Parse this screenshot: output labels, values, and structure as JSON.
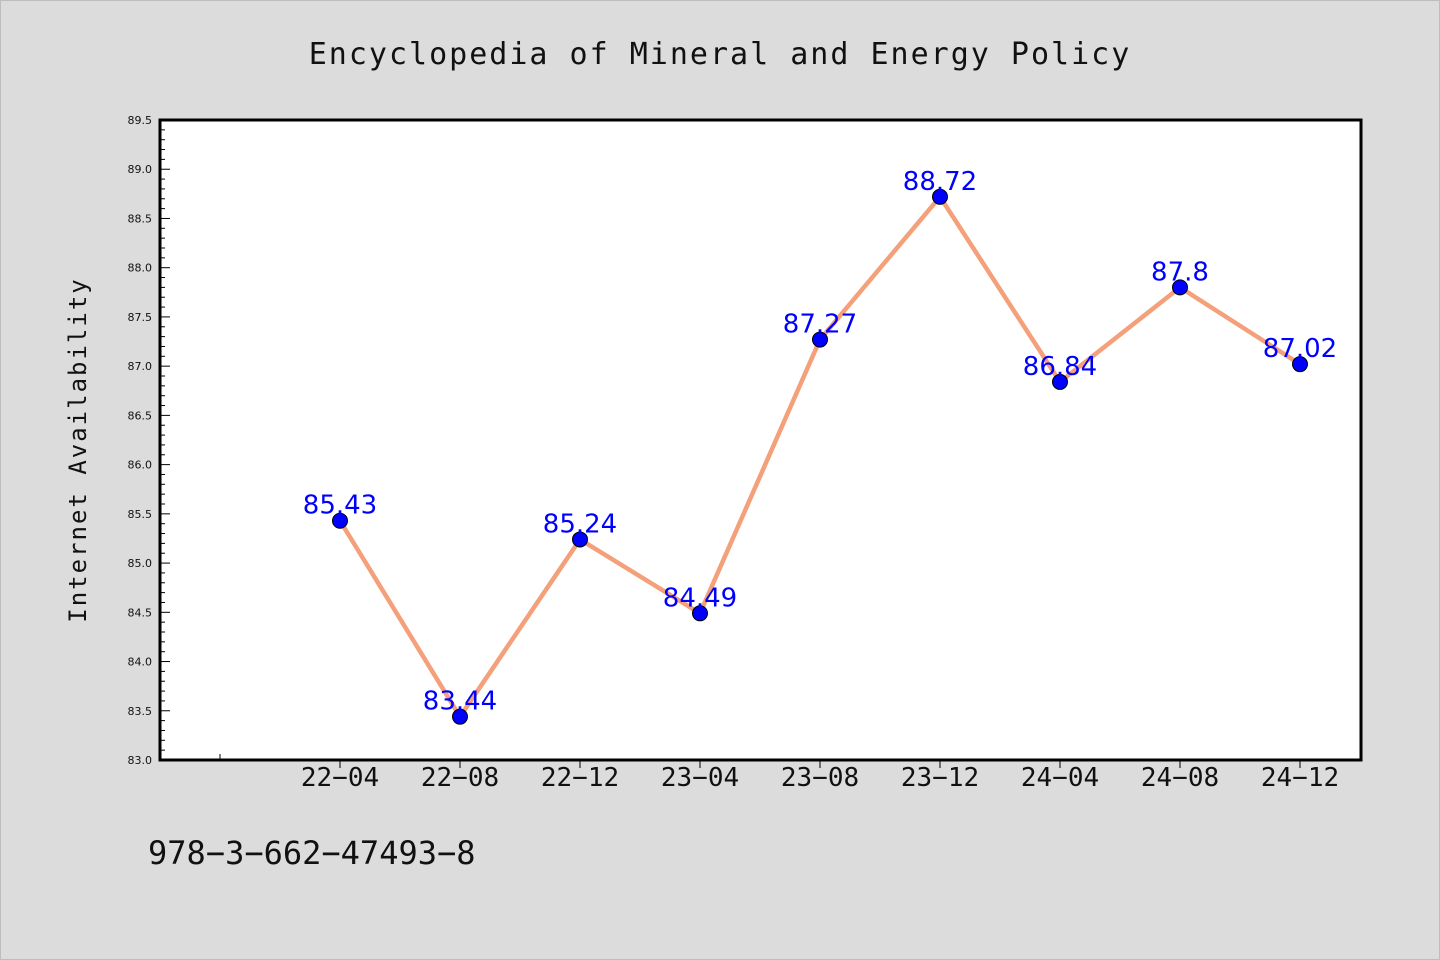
{
  "chart_data": {
    "type": "line",
    "title": "Encyclopedia of Mineral and Energy Policy",
    "xlabel": "",
    "ylabel": "Internet Availability",
    "x": [
      "22-04",
      "22-08",
      "22-12",
      "23-04",
      "23-08",
      "23-12",
      "24-04",
      "24-08",
      "24-12"
    ],
    "x_tick_labels": [
      "22−04",
      "22−08",
      "22−12",
      "23−04",
      "23−08",
      "23−12",
      "24−04",
      "24−08",
      "24−12"
    ],
    "series": [
      {
        "values": [
          85.43,
          83.44,
          85.24,
          84.49,
          87.27,
          88.72,
          86.84,
          87.8,
          87.02
        ],
        "labels": [
          "85.43",
          "83.44",
          "85.24",
          "84.49",
          "87.27",
          "88.72",
          "86.84",
          "87.8",
          "87.02"
        ],
        "line_color": "#f4a07a",
        "marker_color": "#0000ff"
      }
    ],
    "ylim": [
      83.0,
      89.5
    ],
    "y_ticks": [
      "83.0",
      "83.5",
      "84.0",
      "84.5",
      "85.0",
      "85.5",
      "86.0",
      "86.5",
      "87.0",
      "87.5",
      "88.0",
      "88.5",
      "89.0",
      "89.5"
    ],
    "grid": false,
    "legend": "none"
  },
  "footer": {
    "text": "978−3−662−47493−8"
  },
  "colors": {
    "background": "#dcdcdc",
    "plot_background": "#ffffff",
    "label_color": "#0000ff"
  }
}
